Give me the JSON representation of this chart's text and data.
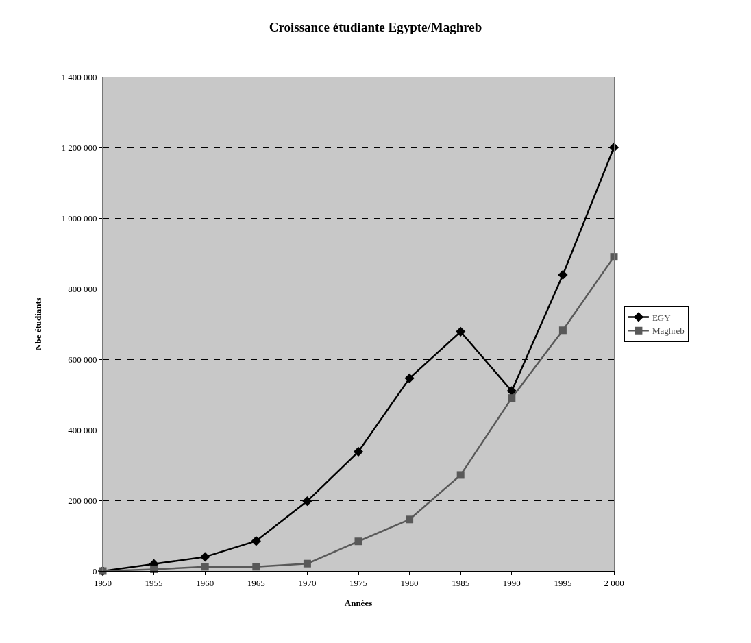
{
  "chart_data": {
    "type": "line",
    "title": "Croissance étudiante Egypte/Maghreb",
    "xlabel": "Années",
    "ylabel": "Nbe étudiants",
    "categories": [
      "1950",
      "1955",
      "1960",
      "1965",
      "1970",
      "1975",
      "1980",
      "1985",
      "1990",
      "1995",
      "2 000"
    ],
    "series": [
      {
        "name": "EGY",
        "color": "#000000",
        "marker": "diamond",
        "values": [
          0,
          20000,
          40000,
          85000,
          198000,
          338000,
          546000,
          678000,
          510000,
          839000,
          1200000
        ]
      },
      {
        "name": "Maghreb",
        "color": "#595959",
        "marker": "square",
        "values": [
          0,
          5000,
          12000,
          12000,
          21000,
          84000,
          146000,
          272000,
          490000,
          682000,
          890000
        ]
      }
    ],
    "ylim": [
      0,
      1400000
    ],
    "yticks": [
      {
        "value": 0,
        "label": "0"
      },
      {
        "value": 200000,
        "label": "200 000"
      },
      {
        "value": 400000,
        "label": "400 000"
      },
      {
        "value": 600000,
        "label": "600 000"
      },
      {
        "value": 800000,
        "label": "800 000"
      },
      {
        "value": 1000000,
        "label": "1 000 000"
      },
      {
        "value": 1200000,
        "label": "1 200 000"
      },
      {
        "value": 1400000,
        "label": "1 400 000"
      }
    ],
    "grid": "y",
    "legend": "right",
    "line_style": "solid"
  }
}
